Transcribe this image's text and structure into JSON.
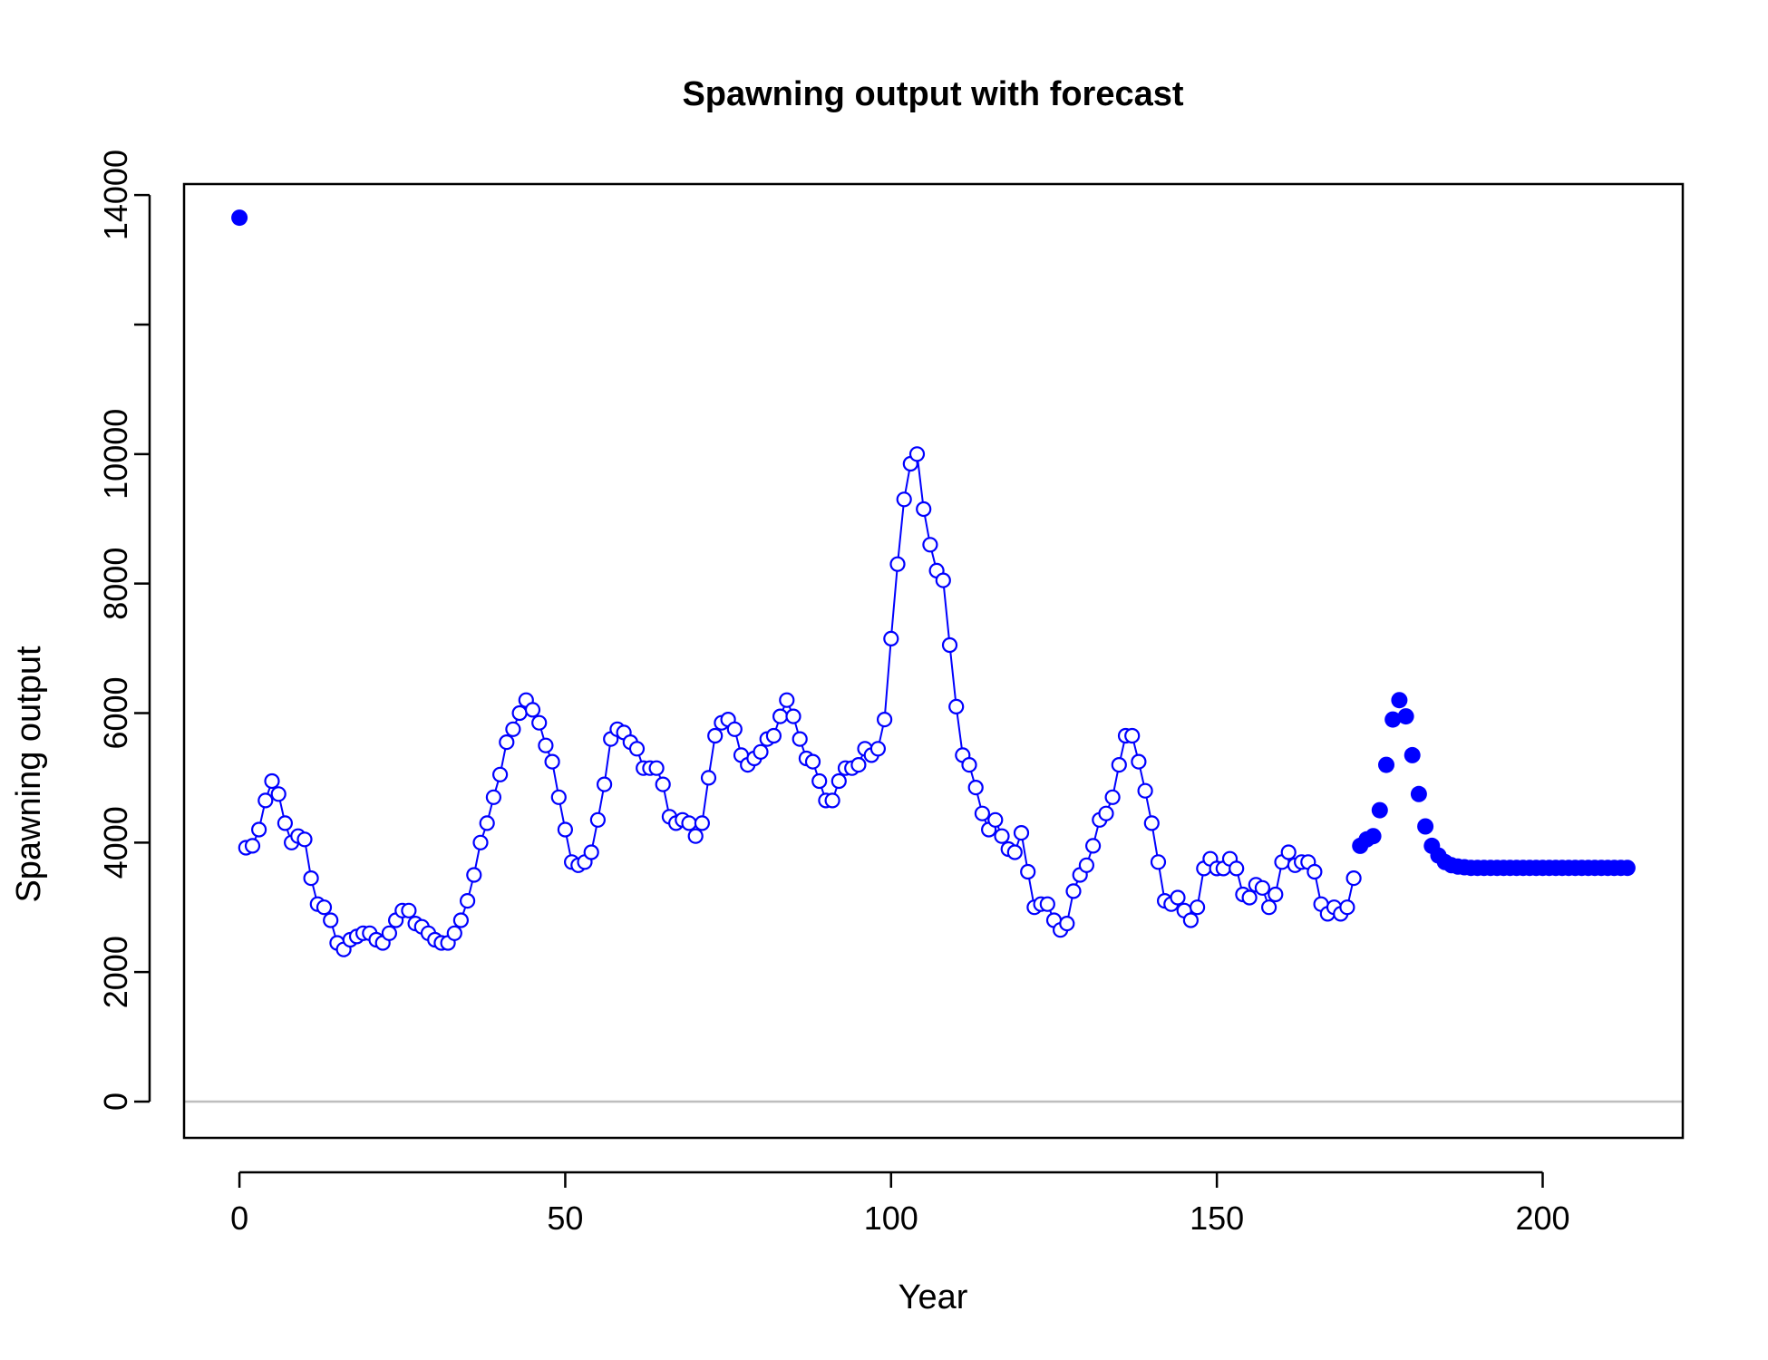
{
  "chart_data": {
    "type": "scatter",
    "title": "Spawning output with forecast",
    "xlabel": "Year",
    "ylabel": "Spawning output",
    "xlim": [
      -8.5,
      221.5
    ],
    "ylim": [
      -560,
      14170
    ],
    "x_ticks": [
      0,
      50,
      100,
      150,
      200
    ],
    "y_ticks": [
      0,
      2000,
      4000,
      6000,
      8000,
      10000,
      12000,
      14000
    ],
    "y_tick_labels": [
      "0",
      "2000",
      "4000",
      "6000",
      "8000",
      "10000",
      "",
      "14000"
    ],
    "reference_line": 0,
    "colors": {
      "series": "#0000ff",
      "reference_line": "#bebebe",
      "axes": "#000000"
    },
    "series": [
      {
        "style": "filled-point",
        "x": [
          0
        ],
        "y": [
          13650
        ]
      },
      {
        "style": "open-circle-line",
        "x": [
          1,
          2,
          3,
          4,
          5,
          6,
          7,
          8,
          9,
          10,
          11,
          12,
          13,
          14,
          15,
          16,
          17,
          18,
          19,
          20,
          21,
          22,
          23,
          24,
          25,
          26,
          27,
          28,
          29,
          30,
          31,
          32,
          33,
          34,
          35,
          36,
          37,
          38,
          39,
          40,
          41,
          42,
          43,
          44,
          45,
          46,
          47,
          48,
          49,
          50,
          51,
          52,
          53,
          54,
          55,
          56,
          57,
          58,
          59,
          60,
          61,
          62,
          63,
          64,
          65,
          66,
          67,
          68,
          69,
          70,
          71,
          72,
          73,
          74,
          75,
          76,
          77,
          78,
          79,
          80,
          81,
          82,
          83,
          84,
          85,
          86,
          87,
          88,
          89,
          90,
          91,
          92,
          93,
          94,
          95,
          96,
          97,
          98,
          99,
          100,
          101,
          102,
          103,
          104,
          105,
          106,
          107,
          108,
          109,
          110,
          111,
          112,
          113,
          114,
          115,
          116,
          117,
          118,
          119,
          120,
          121,
          122,
          123,
          124,
          125,
          126,
          127,
          128,
          129,
          130,
          131,
          132,
          133,
          134,
          135,
          136,
          137,
          138,
          139,
          140,
          141,
          142,
          143,
          144,
          145,
          146,
          147,
          148,
          149,
          150,
          151,
          152,
          153,
          154,
          155,
          156,
          157,
          158,
          159,
          160,
          161,
          162,
          163,
          164,
          165,
          166,
          167,
          168,
          169,
          170,
          171
        ],
        "y": [
          3920,
          3950,
          4200,
          4650,
          4950,
          4750,
          4300,
          4000,
          4100,
          4050,
          3450,
          3050,
          3000,
          2800,
          2450,
          2350,
          2500,
          2550,
          2600,
          2600,
          2500,
          2450,
          2600,
          2800,
          2950,
          2950,
          2750,
          2700,
          2600,
          2500,
          2450,
          2450,
          2600,
          2800,
          3100,
          3500,
          4000,
          4300,
          4700,
          5050,
          5550,
          5750,
          6000,
          6200,
          6050,
          5850,
          5500,
          5250,
          4700,
          4200,
          3700,
          3650,
          3700,
          3850,
          4350,
          4900,
          5600,
          5750,
          5700,
          5550,
          5450,
          5150,
          5150,
          5150,
          4900,
          4400,
          4300,
          4350,
          4300,
          4100,
          4300,
          5000,
          5650,
          5850,
          5900,
          5750,
          5350,
          5200,
          5300,
          5400,
          5600,
          5650,
          5950,
          6200,
          5950,
          5600,
          5300,
          5250,
          4950,
          4650,
          4650,
          4950,
          5150,
          5150,
          5200,
          5450,
          5350,
          5450,
          5900,
          7150,
          8300,
          9300,
          9850,
          10000,
          9150,
          8600,
          8200,
          8050,
          7050,
          6100,
          5350,
          5200,
          4850,
          4450,
          4200,
          4350,
          4100,
          3900,
          3850,
          4150,
          3550,
          3000,
          3050,
          3050,
          2800,
          2650,
          2750,
          3250,
          3500,
          3650,
          3950,
          4350,
          4450,
          4700,
          5200,
          5650,
          5650,
          5250,
          4800,
          4300,
          3700,
          3100,
          3050,
          3150,
          2950,
          2800,
          3000,
          3600,
          3750,
          3600,
          3600,
          3750,
          3600,
          3200,
          3150,
          3350,
          3300,
          3000,
          3200,
          3700,
          3850,
          3650,
          3700,
          3700,
          3550,
          3050,
          2900,
          3000,
          2900,
          3000,
          3450
        ]
      },
      {
        "style": "filled-point",
        "x": [
          172,
          173,
          174,
          175,
          176,
          177,
          178,
          179,
          180,
          181,
          182,
          183,
          184,
          185,
          186,
          187,
          188,
          189,
          190,
          191,
          192,
          193,
          194,
          195,
          196,
          197,
          198,
          199,
          200,
          201,
          202,
          203,
          204,
          205,
          206,
          207,
          208,
          209,
          210,
          211,
          212,
          213
        ],
        "y": [
          3950,
          4050,
          4100,
          4500,
          5200,
          5900,
          6200,
          5950,
          5350,
          4750,
          4250,
          3950,
          3800,
          3700,
          3650,
          3630,
          3620,
          3610,
          3610,
          3610,
          3610,
          3610,
          3610,
          3610,
          3610,
          3610,
          3610,
          3610,
          3610,
          3610,
          3610,
          3610,
          3610,
          3610,
          3610,
          3610,
          3610,
          3610,
          3610,
          3610,
          3610,
          3610
        ]
      }
    ]
  }
}
